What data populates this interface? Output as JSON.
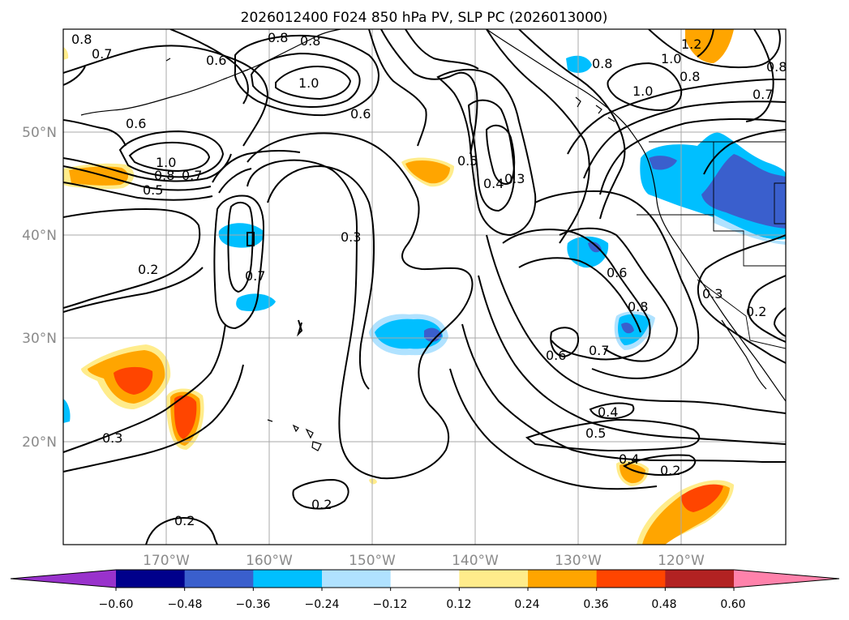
{
  "title": "2026012400 F024 850 hPa PV, SLP PC (2026013000)",
  "map": {
    "lat_labels": [
      "50°N",
      "40°N",
      "30°N",
      "20°N"
    ],
    "lon_labels": [
      "170°W",
      "160°W",
      "150°W",
      "140°W",
      "130°W",
      "120°W"
    ],
    "contour_labels": [
      "0.8",
      "0.7",
      "0.6",
      "0.8",
      "0.8",
      "1.0",
      "0.6",
      "0.6",
      "1.0",
      "0.8",
      "0.7",
      "0.5",
      "0.2",
      "0.7",
      "0.3",
      "0.5",
      "0.4",
      "0.3",
      "0.8",
      "1.0",
      "0.8",
      "1.0",
      "1.2",
      "0.8",
      "0.7",
      "0.6",
      "0.8",
      "0.6",
      "0.7",
      "0.3",
      "0.2",
      "0.4",
      "0.5",
      "0.4",
      "0.2",
      "0.3",
      "0.2",
      "0.2"
    ]
  },
  "colorbar": {
    "ticks": [
      "−0.60",
      "−0.48",
      "−0.36",
      "−0.24",
      "−0.12",
      "0.12",
      "0.24",
      "0.36",
      "0.48",
      "0.60"
    ],
    "colors": [
      "#9932cc",
      "#00008b",
      "#3a5fcd",
      "#00bfff",
      "#b0e2ff",
      "#ffffff",
      "#ffec8b",
      "#ffa500",
      "#ff4500",
      "#b22222",
      "#ff82ab"
    ]
  }
}
